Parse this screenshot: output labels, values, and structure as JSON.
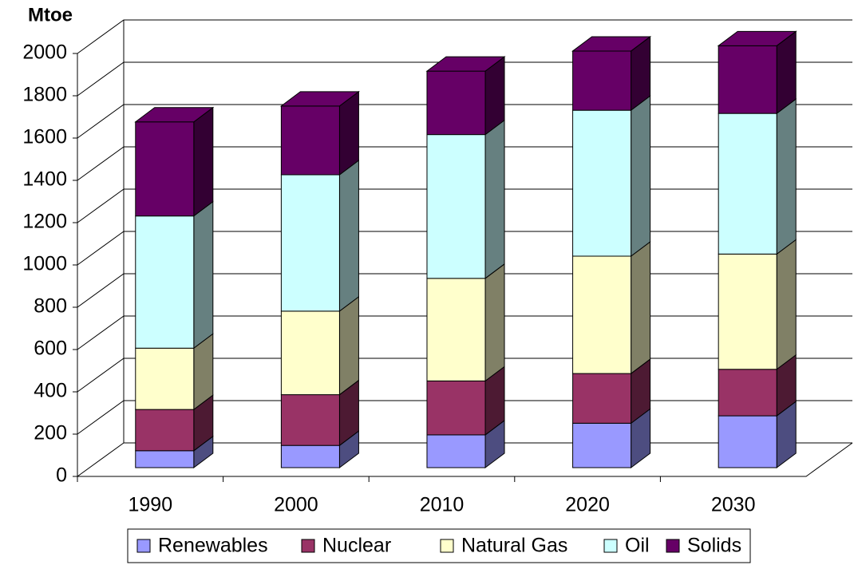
{
  "chart_data": {
    "type": "bar3d_stacked",
    "y_label": "Mtoe",
    "categories": [
      "1990",
      "2000",
      "2010",
      "2020",
      "2030"
    ],
    "series": [
      {
        "name": "Renewables",
        "color": "#9999ff",
        "values": [
          80,
          105,
          155,
          210,
          245
        ]
      },
      {
        "name": "Nuclear",
        "color": "#993366",
        "values": [
          195,
          240,
          255,
          235,
          220
        ]
      },
      {
        "name": "Natural Gas",
        "color": "#ffffcc",
        "values": [
          290,
          395,
          485,
          555,
          545
        ]
      },
      {
        "name": "Oil",
        "color": "#ccffff",
        "values": [
          625,
          645,
          680,
          690,
          665
        ]
      },
      {
        "name": "Solids",
        "color": "#660066",
        "values": [
          445,
          325,
          300,
          280,
          320
        ]
      }
    ],
    "ylim": [
      0,
      2000
    ],
    "yticks": [
      0,
      200,
      400,
      600,
      800,
      1000,
      1200,
      1400,
      1600,
      1800,
      2000
    ],
    "grid": true
  }
}
